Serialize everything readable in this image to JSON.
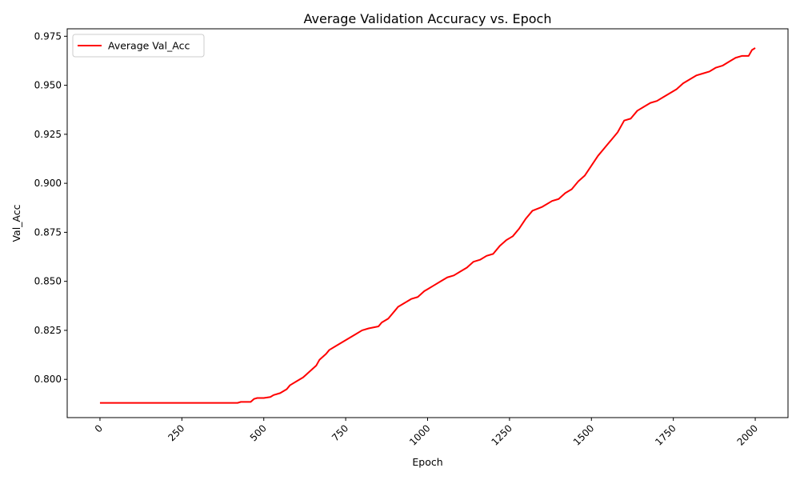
{
  "chart_data": {
    "type": "line",
    "title": "Average Validation Accuracy vs. Epoch",
    "xlabel": "Epoch",
    "ylabel": "Val_Acc",
    "xlim": [
      -100,
      2100
    ],
    "ylim": [
      0.7805,
      0.9788
    ],
    "xticks": [
      0,
      250,
      500,
      750,
      1000,
      1250,
      1500,
      1750,
      2000
    ],
    "yticks": [
      0.8,
      0.825,
      0.85,
      0.875,
      0.9,
      0.925,
      0.95,
      0.975
    ],
    "ytick_labels": [
      "0.800",
      "0.825",
      "0.850",
      "0.875",
      "0.900",
      "0.925",
      "0.950",
      "0.975"
    ],
    "xtick_rotation": 45,
    "grid": false,
    "legend": {
      "position": "top-left"
    },
    "series": [
      {
        "name": "Average Val_Acc",
        "color": "#ff0000",
        "x": [
          0,
          100,
          200,
          300,
          420,
          430,
          460,
          470,
          480,
          500,
          520,
          530,
          550,
          570,
          580,
          600,
          620,
          640,
          660,
          670,
          690,
          700,
          720,
          740,
          760,
          780,
          800,
          820,
          850,
          860,
          880,
          900,
          910,
          930,
          950,
          970,
          990,
          1000,
          1020,
          1040,
          1060,
          1080,
          1100,
          1120,
          1140,
          1160,
          1180,
          1200,
          1220,
          1240,
          1260,
          1280,
          1300,
          1320,
          1350,
          1380,
          1400,
          1420,
          1440,
          1460,
          1480,
          1500,
          1520,
          1540,
          1560,
          1580,
          1600,
          1620,
          1640,
          1660,
          1680,
          1700,
          1720,
          1740,
          1760,
          1780,
          1800,
          1820,
          1840,
          1860,
          1880,
          1900,
          1920,
          1940,
          1960,
          1980,
          1990,
          2000
        ],
        "y": [
          0.788,
          0.788,
          0.788,
          0.788,
          0.788,
          0.7885,
          0.7885,
          0.79,
          0.7905,
          0.7905,
          0.791,
          0.792,
          0.793,
          0.795,
          0.797,
          0.799,
          0.801,
          0.804,
          0.807,
          0.81,
          0.813,
          0.815,
          0.817,
          0.819,
          0.821,
          0.823,
          0.825,
          0.826,
          0.827,
          0.829,
          0.831,
          0.835,
          0.837,
          0.839,
          0.841,
          0.842,
          0.845,
          0.846,
          0.848,
          0.85,
          0.852,
          0.853,
          0.855,
          0.857,
          0.86,
          0.861,
          0.863,
          0.864,
          0.868,
          0.871,
          0.873,
          0.877,
          0.882,
          0.886,
          0.888,
          0.891,
          0.892,
          0.895,
          0.897,
          0.901,
          0.904,
          0.909,
          0.914,
          0.918,
          0.922,
          0.926,
          0.932,
          0.933,
          0.937,
          0.939,
          0.941,
          0.942,
          0.944,
          0.946,
          0.948,
          0.951,
          0.953,
          0.955,
          0.956,
          0.957,
          0.959,
          0.96,
          0.962,
          0.964,
          0.965,
          0.965,
          0.968,
          0.969
        ]
      }
    ]
  }
}
